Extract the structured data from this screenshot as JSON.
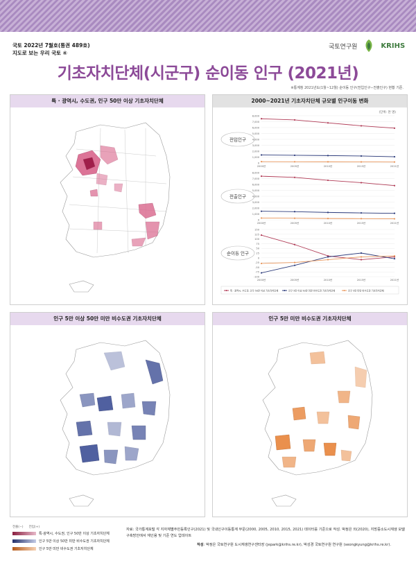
{
  "header": {
    "issue_line1": "국토 2022년 7월호(통권 489호)",
    "issue_line2": "지도로 보는 우리 국토 ④",
    "logo_kr": "국토연구원",
    "logo_en": "KRIHS",
    "title": "기초자치단체(시군구) 순이동 인구 (2021년)",
    "note": "※통계청 2021년도(1월~12월) 순이동 인구(전입인구−전출인구) 현황 기준."
  },
  "panels": {
    "map1_title": "특 · 광역시, 수도권, 인구 50만 이상 기초자치단체",
    "chart_title": "2000~2021년 기초자치단체 규모별 인구이동 변화",
    "map2_title": "인구 5만 이상 50만 미만 비수도권 기초자치단체",
    "map3_title": "인구 5만 미만 비수도권 기초자치단체"
  },
  "colors": {
    "purple_title": "#8c4a98",
    "series1": "#b03a55",
    "series2": "#2b3a7a",
    "series3": "#e8955a",
    "map1": "#d9668c",
    "map2": "#3e4f96",
    "map3": "#e8843a"
  },
  "chart_data": {
    "type": "line",
    "unit": "(단위: 천 명)",
    "categories": [
      "2000년",
      "2005년",
      "2010년",
      "2015년",
      "2021년"
    ],
    "subcharts": [
      {
        "label": "전입인구",
        "ylim": [
          0,
          8000
        ],
        "yticks": [
          "8,000",
          "7,000",
          "6,000",
          "5,000",
          "4,000",
          "3,000",
          "2,000",
          "1,000",
          "0"
        ],
        "series": [
          {
            "name": "특 · 광역시, 수도권, 인구 50만 이상 기초자치단체",
            "values": [
              7500,
              7300,
              6800,
              6300,
              5900
            ]
          },
          {
            "name": "인구 5만 이상 50만 미만 비수도권 기초자치단체",
            "values": [
              1350,
              1300,
              1250,
              1180,
              1050
            ]
          },
          {
            "name": "인구 5만 미만 비수도권 기초자치단체",
            "values": [
              220,
              200,
              190,
              180,
              160
            ]
          }
        ]
      },
      {
        "label": "전출인구",
        "ylim": [
          0,
          8000
        ],
        "yticks": [
          "8,000",
          "7,000",
          "6,000",
          "5,000",
          "4,000",
          "3,000",
          "2,000",
          "1,000",
          "0"
        ],
        "series": [
          {
            "name": "특 · 광역시, 수도권, 인구 50만 이상 기초자치단체",
            "values": [
              7400,
              7200,
              6700,
              6300,
              5800
            ]
          },
          {
            "name": "인구 5만 이상 50만 미만 비수도권 기초자치단체",
            "values": [
              1450,
              1380,
              1250,
              1170,
              1100
            ]
          },
          {
            "name": "인구 5만 미만 비수도권 기초자치단체",
            "values": [
              300,
              270,
              220,
              200,
              170
            ]
          }
        ]
      },
      {
        "label": "순이동 인구",
        "ylim": [
          -100,
          150
        ],
        "yticks": [
          "150",
          "125",
          "100",
          "75",
          "50",
          "25",
          "0",
          "-25",
          "-50",
          "-75",
          "-100"
        ],
        "series": [
          {
            "name": "특 · 광역시, 수도권, 인구 50만 이상 기초자치단체",
            "values": [
              120,
              70,
              10,
              -10,
              5
            ]
          },
          {
            "name": "인구 5만 이상 50만 미만 비수도권 기초자치단체",
            "values": [
              -80,
              -40,
              5,
              25,
              -5
            ]
          },
          {
            "name": "인구 5만 미만 비수도권 기초자치단체",
            "values": [
              -30,
              -25,
              -10,
              5,
              10
            ]
          }
        ]
      }
    ],
    "legend": [
      "특 · 광역시, 수도권, 인구 50만 이상 기초자치단체",
      "인구 5만 이상 50만 미만 비수도권 기초자치단체",
      "인구 5만 미만 비수도권 기초자치단체"
    ]
  },
  "footer": {
    "legend_out": "전출(−)",
    "legend_in": "전입(+)",
    "legend_items": [
      "특·광역시, 수도권, 인구 50만 이상 기초자치단체",
      "인구 5만 이상 50만 미만 비수도권 기초자치단체",
      "인구 5만 미만 비수도권 기초자치단체"
    ],
    "source": "자료: 국가통계포털 각 지자체별주민등록인구(2021) 및 국내인구이동통계 부문(2000, 2005, 2010, 2015, 2021) 데이터를 기준으로 작성. 박정은 외(2020), 지방중소도시재생 모델 구축방안에서 재인용 및 기준 연도 업데이트",
    "author_label": "작성",
    "author": "박정은 국토연구원 도시재생연구센터장 (jepark@krihs.re.kr), 박성경 국토연구원 연구원 (seongkyung@krihs.re.kr)."
  }
}
